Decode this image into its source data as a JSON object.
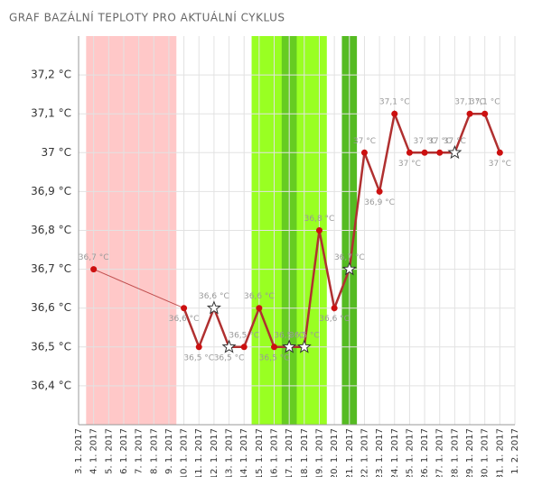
{
  "chart_data": {
    "type": "line",
    "title": "GRAF BAZÁLNÍ TEPLOTY PRO AKTUÁLNÍ CYKLUS",
    "categories": [
      "3. 1. 2017",
      "4. 1. 2017",
      "5. 1. 2017",
      "6. 1. 2017",
      "7. 1. 2017",
      "8. 1. 2017",
      "9. 1. 2017",
      "10. 1. 2017",
      "11. 1. 2017",
      "12. 1. 2017",
      "13. 1. 2017",
      "14. 1. 2017",
      "15. 1. 2017",
      "16. 1. 2017",
      "17. 1. 2017",
      "18. 1. 2017",
      "19. 1. 2017",
      "20. 1. 2017",
      "21. 1. 2017",
      "22. 1. 2017",
      "23. 1. 2017",
      "24. 1. 2017",
      "25. 1. 2017",
      "26. 1. 2017",
      "27. 1. 2017",
      "28. 1. 2017",
      "29. 1. 2017",
      "30. 1. 2017",
      "31. 1. 2017",
      "1. 2. 2017"
    ],
    "series": [
      {
        "color": "#b03030",
        "values": [
          null,
          36.7,
          null,
          null,
          null,
          null,
          null,
          36.6,
          36.5,
          36.6,
          36.5,
          36.5,
          36.6,
          36.5,
          36.5,
          36.5,
          36.8,
          36.6,
          36.7,
          37,
          36.9,
          37.1,
          37,
          37,
          37,
          37,
          37.1,
          37.1,
          37,
          null
        ],
        "value_labels": [
          null,
          "36,7 °C",
          null,
          null,
          null,
          null,
          null,
          "36,6 °C",
          "36,5 °C",
          "36,6 °C",
          "36,5 °C",
          "36,5 °C",
          "36,6 °C",
          "36,5 °C",
          "36,5 °C",
          "36,5 °C",
          "36,8 °C",
          "36,6 °C",
          "36,7 °C",
          "37 °C",
          "36,9 °C",
          "37,1 °C",
          "37 °C",
          "37 °C",
          "37 °C",
          "37 °C",
          "37,1 °C",
          "37,1 °C",
          "37 °C",
          null
        ],
        "markers": [
          null,
          "circle",
          null,
          null,
          null,
          null,
          null,
          "circle",
          "circle",
          "star",
          "star",
          "circle",
          "circle",
          "circle",
          "star",
          "star",
          "circle",
          "circle",
          "star",
          "circle",
          "circle",
          "circle",
          "circle",
          "circle",
          "circle",
          "star",
          "circle",
          "circle",
          "circle",
          null
        ]
      }
    ],
    "bands": [
      {
        "from": 1,
        "to": 6,
        "color": "#ffc8c8"
      },
      {
        "from": 12,
        "to": 16,
        "color": "#99ff22"
      },
      {
        "from": 14,
        "to": 14,
        "color": "#66cc22"
      },
      {
        "from": 18,
        "to": 18,
        "color": "#55bb22"
      }
    ],
    "ylim": [
      36.3,
      37.3
    ],
    "yticks": [
      {
        "value": 36.4,
        "label": "36,4 °C"
      },
      {
        "value": 36.5,
        "label": "36,5 °C"
      },
      {
        "value": 36.6,
        "label": "36,6 °C"
      },
      {
        "value": 36.7,
        "label": "36,7 °C"
      },
      {
        "value": 36.8,
        "label": "36,8 °C"
      },
      {
        "value": 36.9,
        "label": "36,9 °C"
      },
      {
        "value": 37,
        "label": "37 °C"
      },
      {
        "value": 37.1,
        "label": "37,1 °C"
      },
      {
        "value": 37.2,
        "label": "37,2 °C"
      }
    ],
    "grid": true
  }
}
